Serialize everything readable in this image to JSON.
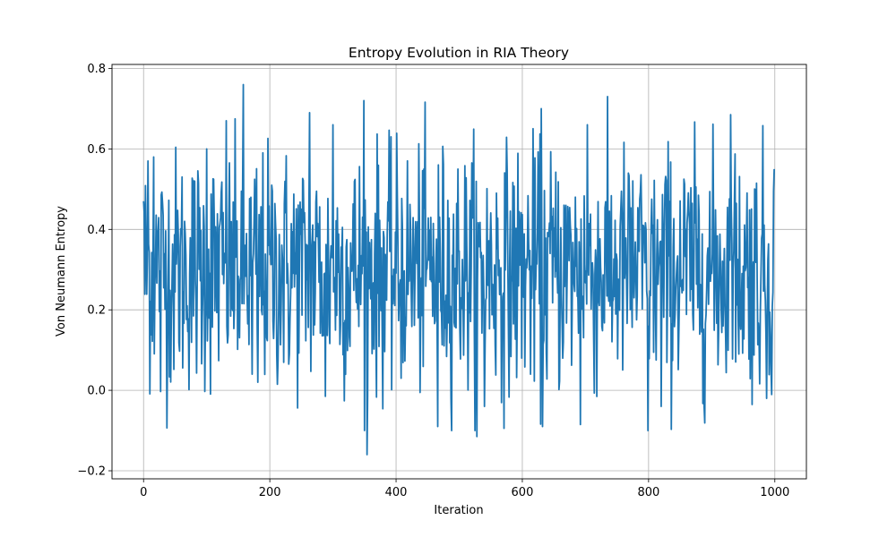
{
  "chart_data": {
    "type": "line",
    "title": "Entropy Evolution in RIA Theory",
    "xlabel": "Iteration",
    "ylabel": "Von Neumann Entropy",
    "xlim": [
      -50,
      1050
    ],
    "ylim": [
      -0.22,
      0.81
    ],
    "xticks": [
      0,
      200,
      400,
      600,
      800,
      1000
    ],
    "yticks": [
      -0.2,
      0.0,
      0.2,
      0.4,
      0.6,
      0.8
    ],
    "xtick_labels": [
      "0",
      "200",
      "400",
      "600",
      "800",
      "1000"
    ],
    "ytick_labels": [
      "−0.2",
      "0.0",
      "0.2",
      "0.4",
      "0.6",
      "0.8"
    ],
    "grid": true,
    "series": [
      {
        "color": "#1f77b4",
        "summary": {
          "count": 1000,
          "x_start": 0,
          "x_end": 999,
          "mean": 0.3,
          "std": 0.15,
          "min": -0.16,
          "max": 0.76
        },
        "keypoints": [
          {
            "x": 0,
            "y": 0.47
          },
          {
            "x": 7,
            "y": 0.57
          },
          {
            "x": 16,
            "y": 0.58
          },
          {
            "x": 27,
            "y": -0.003
          },
          {
            "x": 100,
            "y": 0.6
          },
          {
            "x": 131,
            "y": 0.67
          },
          {
            "x": 158,
            "y": 0.76
          },
          {
            "x": 172,
            "y": 0.04
          },
          {
            "x": 181,
            "y": 0.02
          },
          {
            "x": 263,
            "y": 0.69
          },
          {
            "x": 288,
            "y": -0.015
          },
          {
            "x": 300,
            "y": 0.66
          },
          {
            "x": 349,
            "y": 0.72
          },
          {
            "x": 354,
            "y": -0.16
          },
          {
            "x": 392,
            "y": 0.63
          },
          {
            "x": 466,
            "y": -0.09
          },
          {
            "x": 528,
            "y": -0.115
          },
          {
            "x": 540,
            "y": -0.04
          },
          {
            "x": 630,
            "y": 0.7
          },
          {
            "x": 632,
            "y": -0.09
          },
          {
            "x": 692,
            "y": -0.085
          },
          {
            "x": 703,
            "y": 0.66
          },
          {
            "x": 799,
            "y": -0.1
          },
          {
            "x": 820,
            "y": -0.04
          },
          {
            "x": 930,
            "y": 0.685
          },
          {
            "x": 987,
            "y": -0.02
          },
          {
            "x": 999,
            "y": 0.55
          }
        ]
      }
    ]
  }
}
